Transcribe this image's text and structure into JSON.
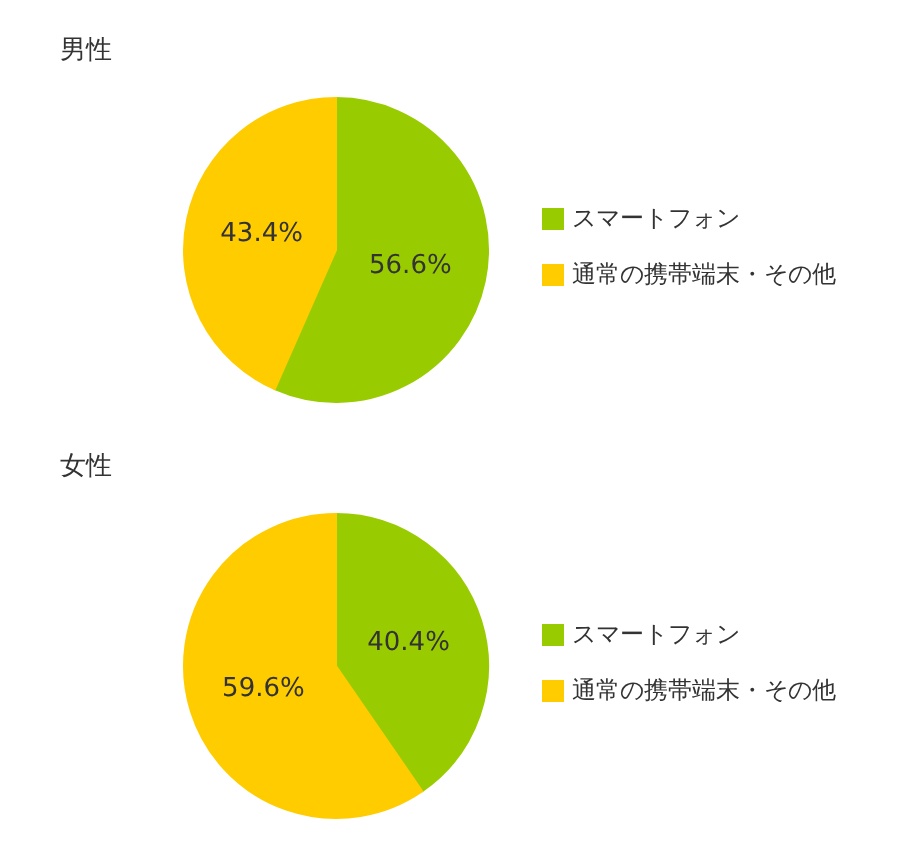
{
  "chart_data": [
    {
      "type": "pie",
      "title": "男性",
      "categories": [
        "スマートフォン",
        "通常の携帯端末・その他"
      ],
      "values": [
        56.6,
        43.4
      ],
      "colors": [
        "#99cc00",
        "#ffcc00"
      ],
      "value_labels": [
        "56.6%",
        "43.4%"
      ],
      "legend": "right"
    },
    {
      "type": "pie",
      "title": "女性",
      "categories": [
        "スマートフォン",
        "通常の携帯端末・その他"
      ],
      "values": [
        40.4,
        59.6
      ],
      "colors": [
        "#99cc00",
        "#ffcc00"
      ],
      "value_labels": [
        "40.4%",
        "59.6%"
      ],
      "legend": "right"
    }
  ]
}
